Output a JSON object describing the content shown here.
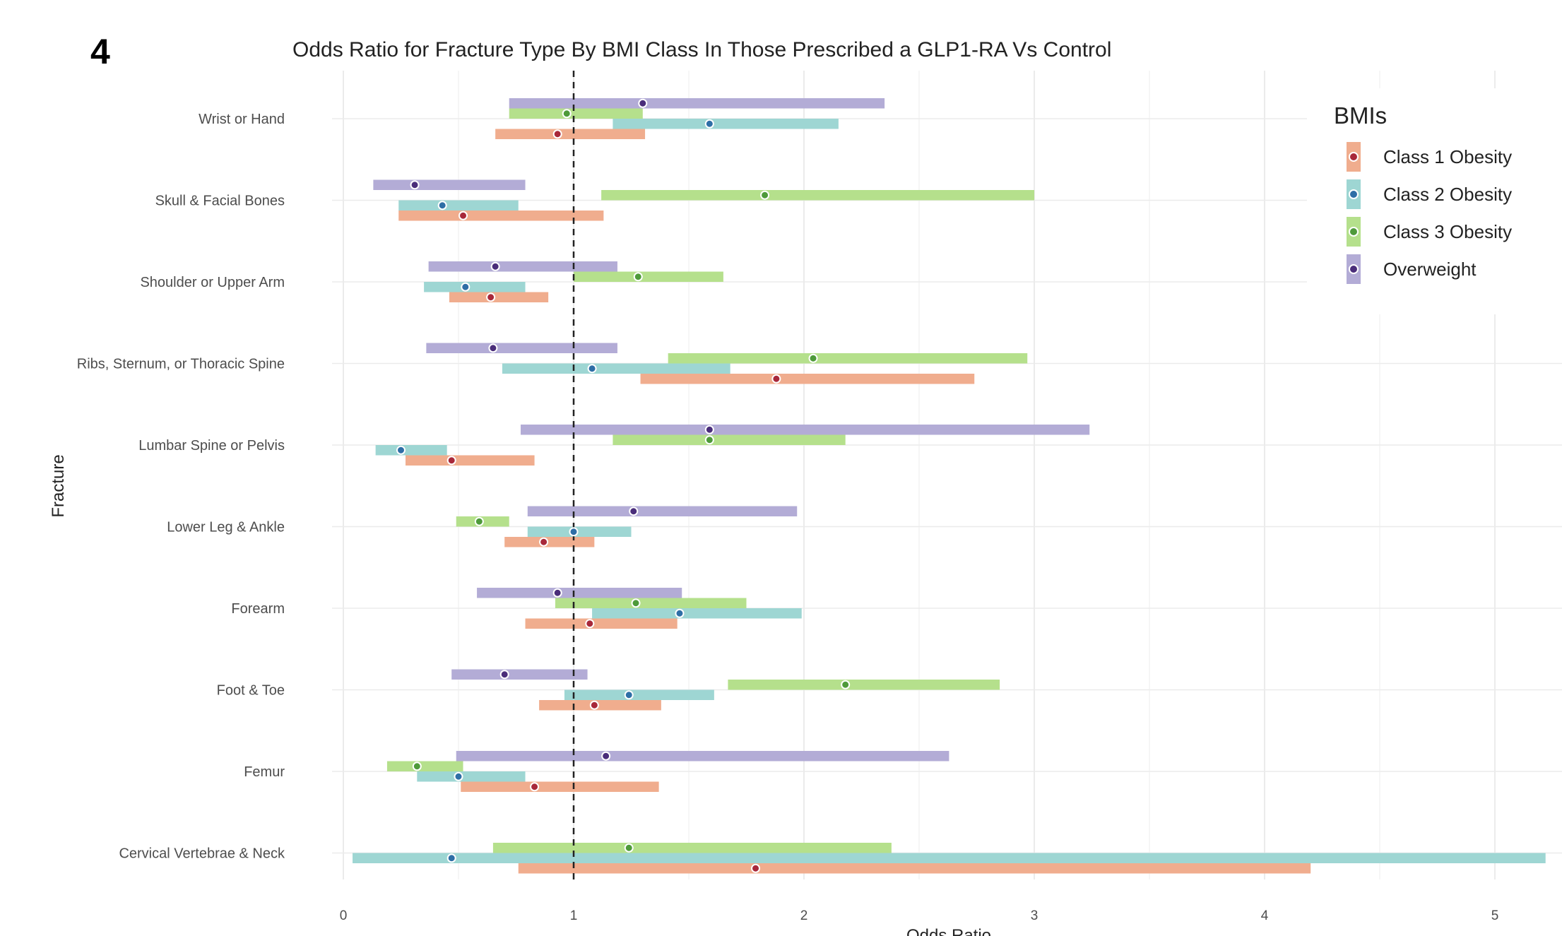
{
  "figure": {
    "panel_label": "4"
  },
  "chart_data": {
    "type": "forest",
    "title": "Odds Ratio for Fracture Type By BMI Class In Those Prescribed a GLP1-RA Vs Control",
    "xlabel": "Odds Ratio",
    "ylabel": "Fracture",
    "xlim": [
      0,
      5.2
    ],
    "xticks": [
      0,
      1,
      2,
      3,
      4,
      5
    ],
    "reference_line": 1,
    "grid": true,
    "legend": {
      "title": "BMIs",
      "position": "top-right",
      "order": [
        "Class 1 Obesity",
        "Class 2 Obesity",
        "Class 3 Obesity",
        "Overweight"
      ]
    },
    "categories": [
      "Wrist or Hand",
      "Skull & Facial Bones",
      "Shoulder or Upper Arm",
      "Ribs, Sternum, or Thoracic Spine",
      "Lumbar Spine or Pelvis",
      "Lower Leg & Ankle",
      "Forearm",
      "Foot & Toe",
      "Femur",
      "Cervical Vertebrae & Neck"
    ],
    "series": [
      {
        "name": "Overweight",
        "color": "#b3acd6",
        "point_color": "#4a2d7a",
        "data": [
          {
            "estimate": 1.3,
            "lower": 0.72,
            "upper": 2.35
          },
          {
            "estimate": 0.31,
            "lower": 0.13,
            "upper": 0.79
          },
          {
            "estimate": 0.66,
            "lower": 0.37,
            "upper": 1.19
          },
          {
            "estimate": 0.65,
            "lower": 0.36,
            "upper": 1.19
          },
          {
            "estimate": 1.59,
            "lower": 0.77,
            "upper": 3.24
          },
          {
            "estimate": 1.26,
            "lower": 0.8,
            "upper": 1.97
          },
          {
            "estimate": 0.93,
            "lower": 0.58,
            "upper": 1.47
          },
          {
            "estimate": 0.7,
            "lower": 0.47,
            "upper": 1.06
          },
          {
            "estimate": 1.14,
            "lower": 0.49,
            "upper": 2.63
          },
          {
            "estimate": null,
            "lower": null,
            "upper": null
          }
        ]
      },
      {
        "name": "Class 3 Obesity",
        "color": "#b5e08c",
        "point_color": "#4e9a3a",
        "data": [
          {
            "estimate": 0.97,
            "lower": 0.72,
            "upper": 1.3
          },
          {
            "estimate": 1.83,
            "lower": 1.12,
            "upper": 3.0
          },
          {
            "estimate": 1.28,
            "lower": 1.0,
            "upper": 1.65
          },
          {
            "estimate": 2.04,
            "lower": 1.41,
            "upper": 2.97
          },
          {
            "estimate": 1.59,
            "lower": 1.17,
            "upper": 2.18
          },
          {
            "estimate": 0.59,
            "lower": 0.49,
            "upper": 0.72
          },
          {
            "estimate": 1.27,
            "lower": 0.92,
            "upper": 1.75
          },
          {
            "estimate": 2.18,
            "lower": 1.67,
            "upper": 2.85
          },
          {
            "estimate": 0.32,
            "lower": 0.19,
            "upper": 0.52
          },
          {
            "estimate": 1.24,
            "lower": 0.65,
            "upper": 2.38
          }
        ]
      },
      {
        "name": "Class 2 Obesity",
        "color": "#9ed6d3",
        "point_color": "#2e6ea6",
        "data": [
          {
            "estimate": 1.59,
            "lower": 1.17,
            "upper": 2.15
          },
          {
            "estimate": 0.43,
            "lower": 0.24,
            "upper": 0.76
          },
          {
            "estimate": 0.53,
            "lower": 0.35,
            "upper": 0.79
          },
          {
            "estimate": 1.08,
            "lower": 0.69,
            "upper": 1.68
          },
          {
            "estimate": 0.25,
            "lower": 0.14,
            "upper": 0.45
          },
          {
            "estimate": 1.0,
            "lower": 0.8,
            "upper": 1.25
          },
          {
            "estimate": 1.46,
            "lower": 1.08,
            "upper": 1.99
          },
          {
            "estimate": 1.24,
            "lower": 0.96,
            "upper": 1.61
          },
          {
            "estimate": 0.5,
            "lower": 0.32,
            "upper": 0.79
          },
          {
            "estimate": 0.47,
            "lower": 0.04,
            "upper": 5.22
          }
        ]
      },
      {
        "name": "Class 1 Obesity",
        "color": "#f0ad8e",
        "point_color": "#a8283a",
        "data": [
          {
            "estimate": 0.93,
            "lower": 0.66,
            "upper": 1.31
          },
          {
            "estimate": 0.52,
            "lower": 0.24,
            "upper": 1.13
          },
          {
            "estimate": 0.64,
            "lower": 0.46,
            "upper": 0.89
          },
          {
            "estimate": 1.88,
            "lower": 1.29,
            "upper": 2.74
          },
          {
            "estimate": 0.47,
            "lower": 0.27,
            "upper": 0.83
          },
          {
            "estimate": 0.87,
            "lower": 0.7,
            "upper": 1.09
          },
          {
            "estimate": 1.07,
            "lower": 0.79,
            "upper": 1.45
          },
          {
            "estimate": 1.09,
            "lower": 0.85,
            "upper": 1.38
          },
          {
            "estimate": 0.83,
            "lower": 0.51,
            "upper": 1.37
          },
          {
            "estimate": 1.79,
            "lower": 0.76,
            "upper": 4.2
          }
        ]
      }
    ]
  }
}
